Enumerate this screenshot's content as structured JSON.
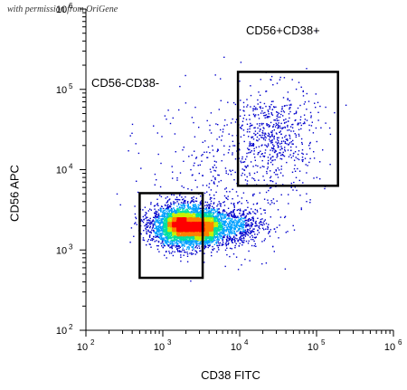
{
  "watermark": "with permission from OriGene",
  "chart_data": {
    "type": "scatter",
    "subtype": "flow-cytometry-density-dot-plot",
    "xlabel": "CD38 FITC",
    "ylabel": "CD56 APC",
    "xscale": "log",
    "yscale": "log",
    "xlim": [
      100,
      1000000
    ],
    "ylim": [
      100,
      1000000
    ],
    "xticks": [
      100,
      1000,
      10000,
      100000,
      1000000
    ],
    "yticks": [
      100,
      1000,
      10000,
      100000,
      1000000
    ],
    "xtick_labels": [
      "10",
      "10",
      "10",
      "10",
      "10"
    ],
    "xtick_exponents": [
      "2",
      "3",
      "4",
      "5",
      "6"
    ],
    "ytick_labels": [
      "10",
      "10",
      "10",
      "10",
      "10"
    ],
    "ytick_exponents": [
      "2",
      "3",
      "4",
      "5",
      "6"
    ],
    "density_colors": [
      "#0000cc",
      "#00a0ff",
      "#00e0a0",
      "#c8f000",
      "#ff8000",
      "#ff0000"
    ],
    "gates": [
      {
        "name": "CD56-CD38-",
        "x_range": [
          500,
          3300
        ],
        "y_range": [
          450,
          5100
        ]
      },
      {
        "name": "CD56+CD38+",
        "x_range": [
          9500,
          190000
        ],
        "y_range": [
          6300,
          165000
        ]
      }
    ],
    "populations": [
      {
        "description": "main",
        "x_center_log": 3.3,
        "y_center_log": 3.3,
        "x_sd_log": 0.22,
        "y_sd_log": 0.13,
        "count": 3500
      },
      {
        "description": "dense-left",
        "x_center_log": 3.22,
        "y_center_log": 3.32,
        "x_sd_log": 0.1,
        "y_sd_log": 0.07,
        "count": 1600
      },
      {
        "description": "dense-right",
        "x_center_log": 3.53,
        "y_center_log": 3.28,
        "x_sd_log": 0.09,
        "y_sd_log": 0.07,
        "count": 1400
      },
      {
        "description": "cd38-high-tail",
        "x_center_log": 3.9,
        "y_center_log": 3.3,
        "x_sd_log": 0.22,
        "y_sd_log": 0.12,
        "count": 700
      },
      {
        "description": "cd56-bright",
        "x_center_log": 4.45,
        "y_center_log": 4.45,
        "x_sd_log": 0.28,
        "y_sd_log": 0.3,
        "count": 520
      },
      {
        "description": "sparse-background",
        "x_center_log": 3.8,
        "y_center_log": 3.9,
        "x_sd_log": 0.5,
        "y_sd_log": 0.5,
        "count": 450
      }
    ]
  }
}
